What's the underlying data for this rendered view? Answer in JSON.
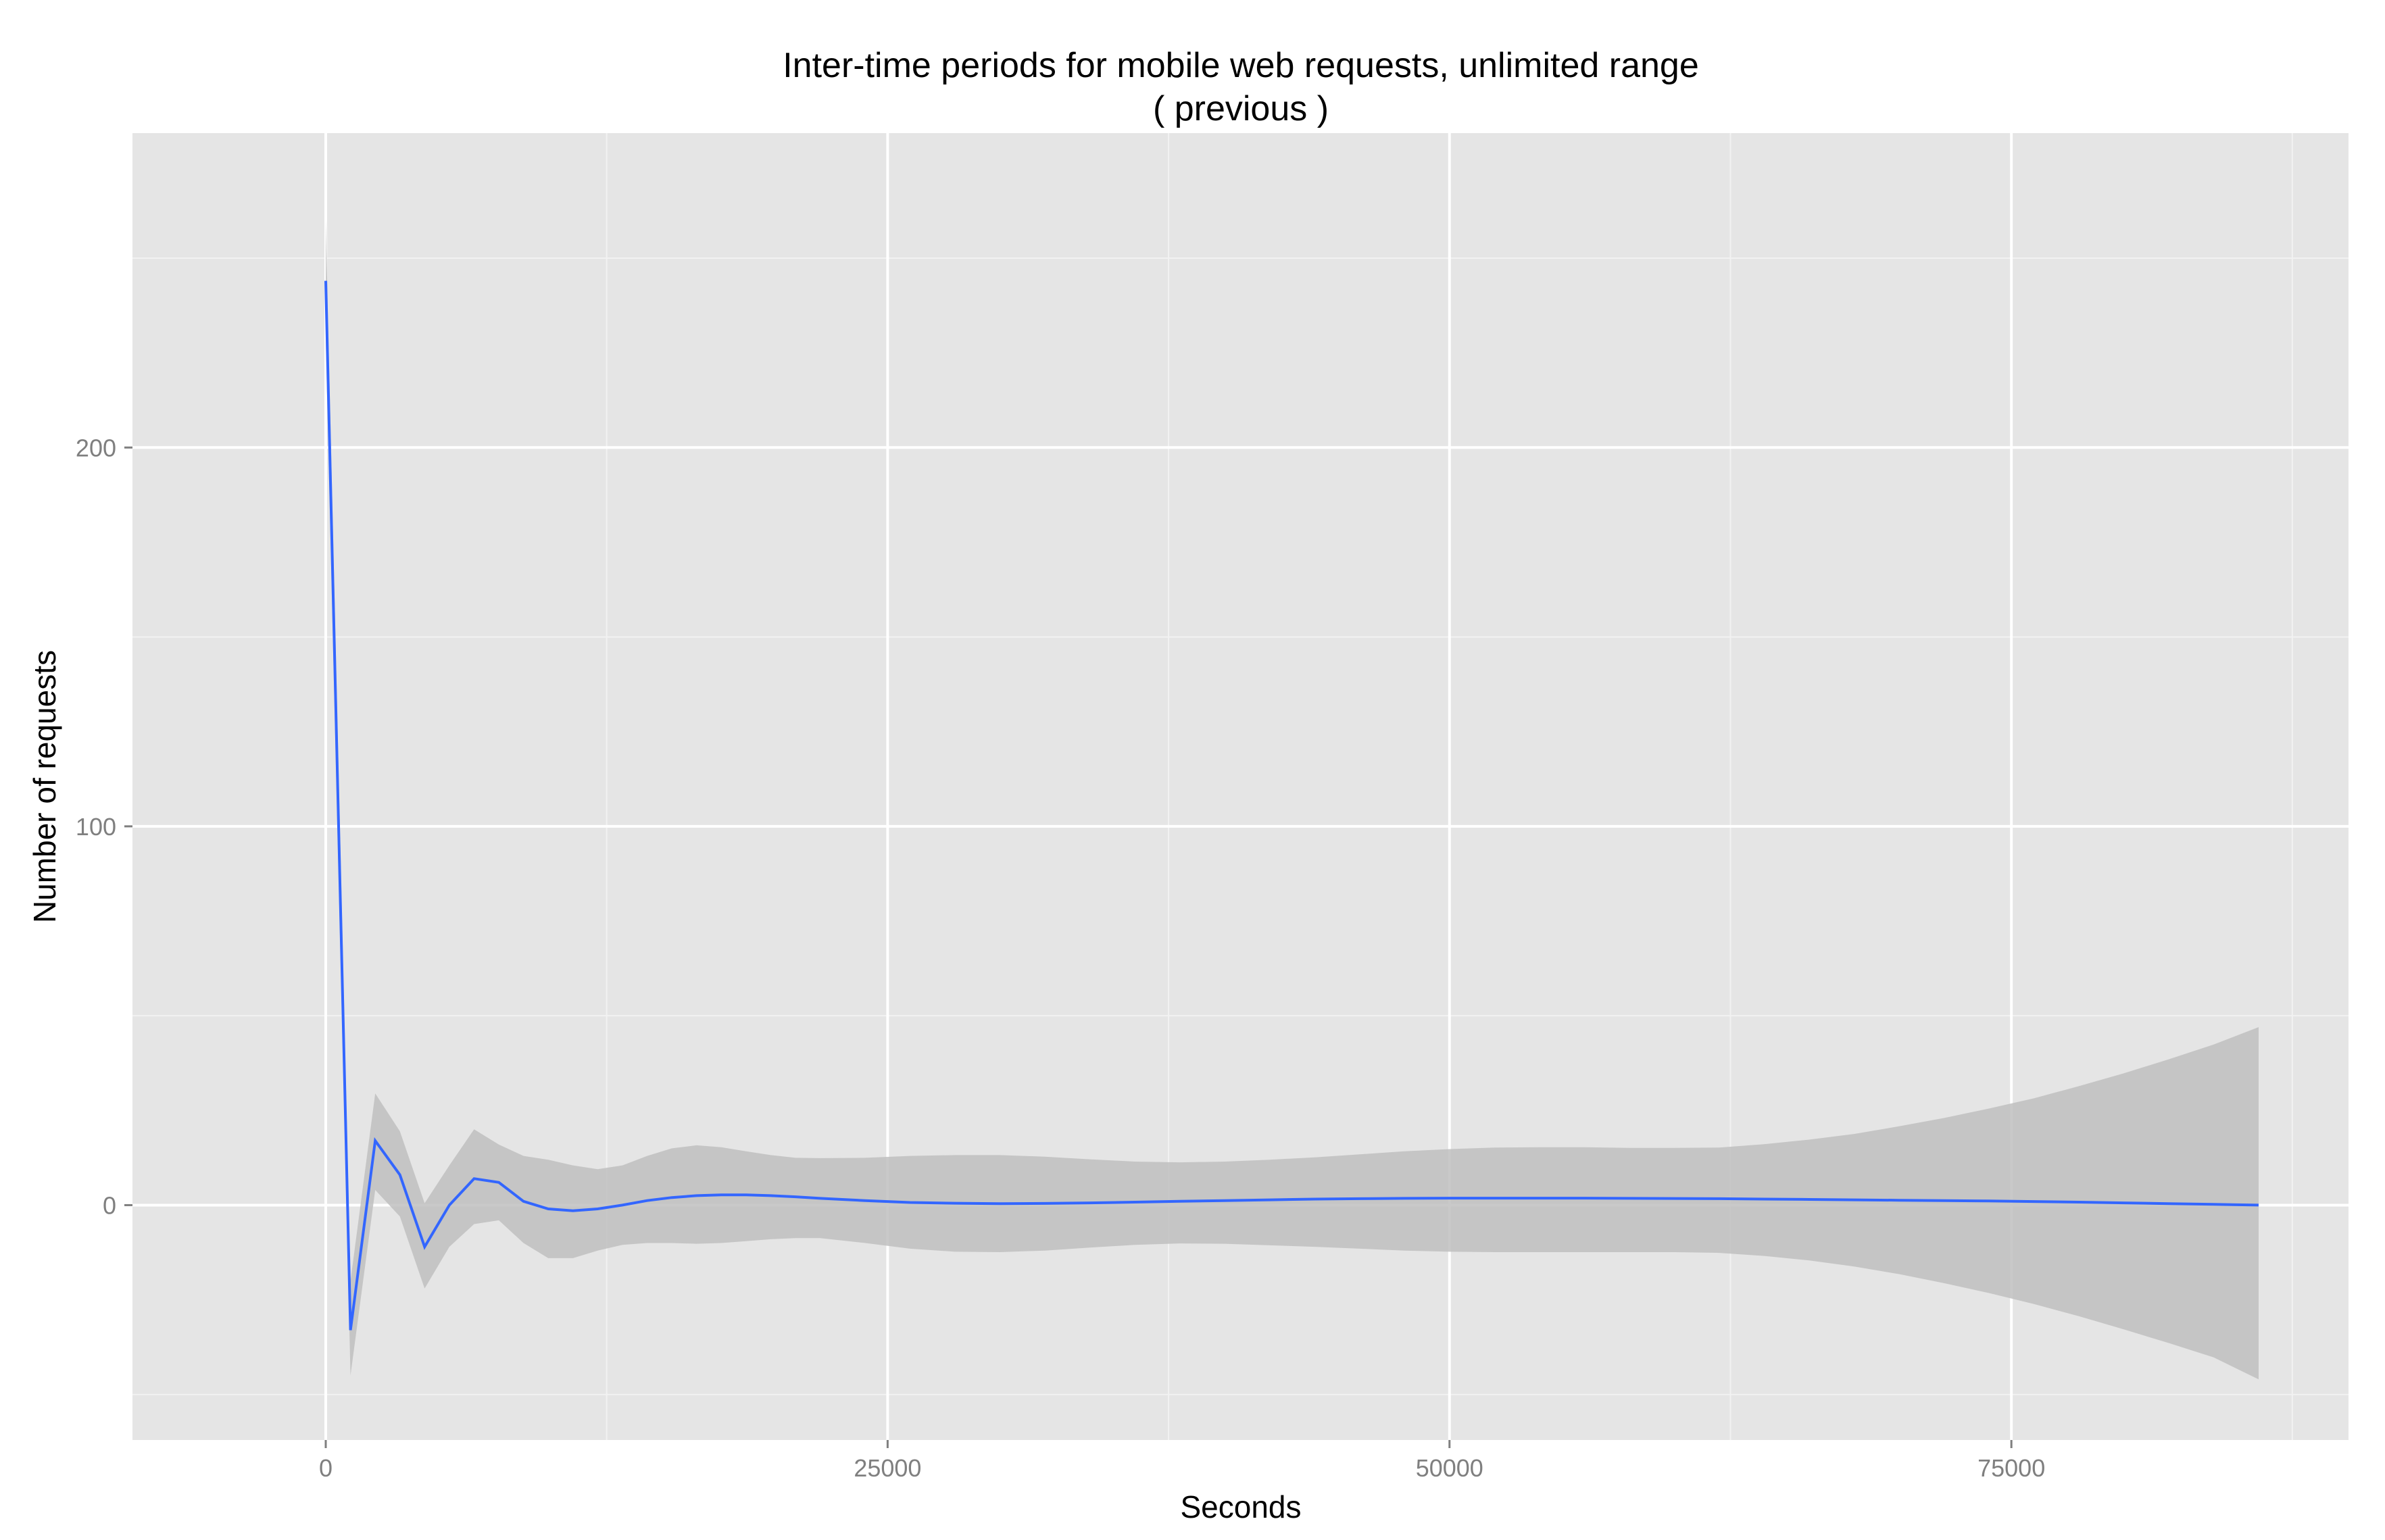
{
  "chart_data": {
    "type": "line",
    "title": "Inter-time periods for mobile web requests, unlimited range",
    "subtitle": "( previous )",
    "xlabel": "Seconds",
    "ylabel": "Number of requests",
    "xlim": [
      -8600,
      90000
    ],
    "ylim": [
      -62,
      283
    ],
    "x_ticks": [
      0,
      25000,
      50000,
      75000
    ],
    "x_tick_labels": [
      "0",
      "25000",
      "50000",
      "75000"
    ],
    "y_ticks": [
      0,
      100,
      200
    ],
    "y_tick_labels": [
      "0",
      "100",
      "200"
    ],
    "grid": true,
    "legend": "none",
    "colors": {
      "panel": "#e5e5e5",
      "grid_major": "#ffffff",
      "grid_minor": "#f2f2f2",
      "line": "#3366ff",
      "band": "#bfbfbf",
      "text": "#000000",
      "tick_text": "#7f7f7f",
      "tick_mark": "#7f7f7f"
    },
    "series": [
      {
        "x": [
          0,
          1100,
          2200,
          3300,
          4400,
          5500,
          6600,
          7700,
          8800,
          9900,
          11000,
          12100,
          13200,
          14300,
          15400,
          16500,
          17600,
          18700,
          19800,
          20900,
          22000,
          24000,
          26000,
          28000,
          30000,
          32000,
          34000,
          36000,
          38000,
          40000,
          42000,
          44000,
          46000,
          48000,
          50000,
          52000,
          54000,
          56000,
          58000,
          60000,
          62000,
          64000,
          66000,
          68000,
          70000,
          72000,
          74000,
          76000,
          78000,
          80000,
          82000,
          84000,
          86000
        ],
        "y": [
          244,
          -33,
          17,
          8,
          -11,
          0,
          7,
          6,
          1,
          -1,
          -1.5,
          -1,
          0,
          1.2,
          2,
          2.5,
          2.7,
          2.7,
          2.5,
          2.2,
          1.8,
          1.2,
          0.7,
          0.5,
          0.4,
          0.45,
          0.6,
          0.8,
          1,
          1.2,
          1.4,
          1.6,
          1.7,
          1.8,
          1.85,
          1.85,
          1.85,
          1.85,
          1.8,
          1.75,
          1.7,
          1.6,
          1.5,
          1.4,
          1.3,
          1.2,
          1.1,
          0.95,
          0.8,
          0.6,
          0.4,
          0.2,
          0
        ],
        "lower": [
          228,
          -45,
          4,
          -3,
          -22,
          -11,
          -5,
          -4,
          -10,
          -14,
          -14,
          -12,
          -10.5,
          -10,
          -10,
          -10.2,
          -10,
          -9.5,
          -9,
          -8.7,
          -8.7,
          -10,
          -11.5,
          -12.3,
          -12.4,
          -12,
          -11.2,
          -10.5,
          -10.1,
          -10.2,
          -10.6,
          -11,
          -11.5,
          -12,
          -12.3,
          -12.4,
          -12.4,
          -12.4,
          -12.4,
          -12.4,
          -12.6,
          -13.4,
          -14.6,
          -16.2,
          -18.2,
          -20.6,
          -23.2,
          -26.1,
          -29.3,
          -32.8,
          -36.4,
          -40.2,
          -46
        ],
        "upper": [
          260,
          -20,
          29.5,
          19.5,
          0.5,
          10.5,
          20,
          16,
          13,
          12,
          10.5,
          9.5,
          10.5,
          13,
          15,
          15.8,
          15.3,
          14.2,
          13.2,
          12.5,
          12.4,
          12.5,
          13,
          13.2,
          13.2,
          12.8,
          12.1,
          11.5,
          11.3,
          11.5,
          12,
          12.6,
          13.4,
          14.2,
          14.8,
          15.2,
          15.3,
          15.3,
          15.1,
          15.1,
          15.2,
          16.1,
          17.3,
          18.8,
          20.8,
          23,
          25.5,
          28.2,
          31.4,
          34.8,
          38.5,
          42.4,
          47
        ]
      }
    ]
  }
}
